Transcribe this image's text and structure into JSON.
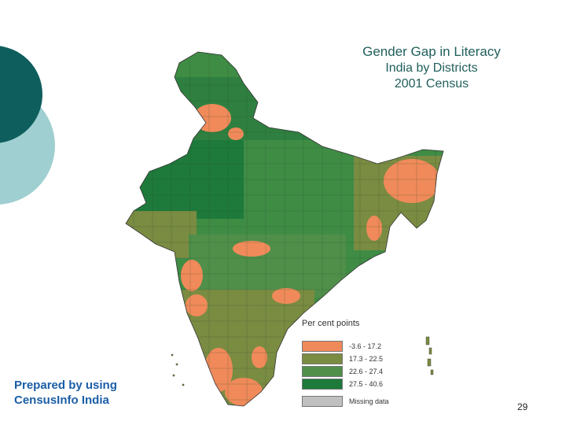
{
  "slide": {
    "title": "Gender Gap in Literacy",
    "subtitle": "India by Districts",
    "census": "2001 Census",
    "credit_line1": "Prepared by using",
    "credit_line2": "CensusInfo India",
    "page_number": "29"
  },
  "legend": {
    "heading": "Per cent points",
    "items": [
      {
        "label": "-3.6 - 17.2",
        "color": "#f08a5a"
      },
      {
        "label": "17.3 - 22.5",
        "color": "#7a8c42"
      },
      {
        "label": "22.6 - 27.4",
        "color": "#4f8f4a"
      },
      {
        "label": "27.5 - 40.6",
        "color": "#1e7a3a"
      },
      {
        "label": "Missing data",
        "color": "#c0c0c0"
      }
    ]
  },
  "colors": {
    "deco_dark": "#0e5e5d",
    "deco_light": "#9fcfd0",
    "title_color": "#1f5f5c",
    "credit_color": "#1b5ea6"
  }
}
